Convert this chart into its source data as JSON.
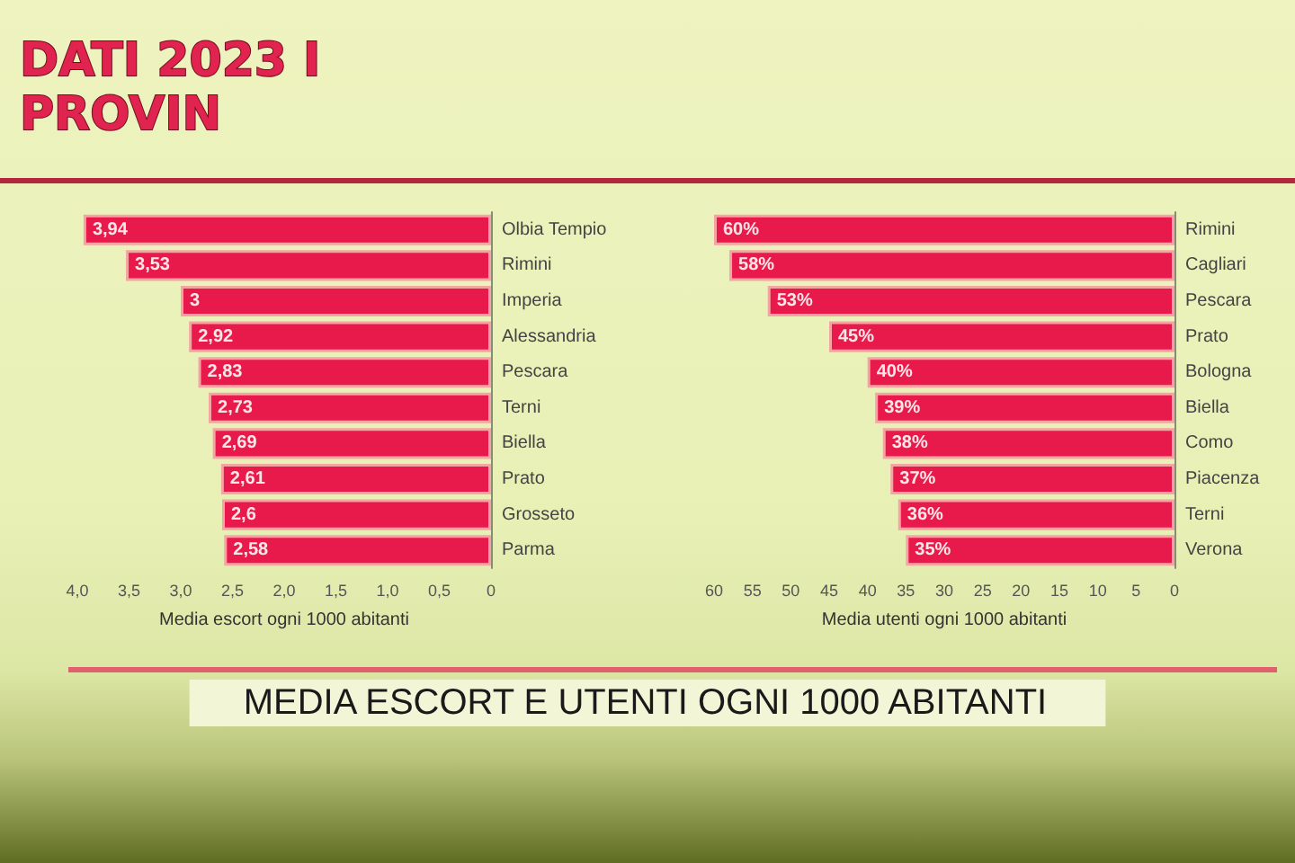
{
  "chart_data": [
    {
      "type": "bar",
      "orientation": "horizontal",
      "title": "DATI 2023 I\nPROVIN",
      "xlabel": "Media escort ogni 1000 abitanti",
      "categories": [
        "Olbia Tempio",
        "Rimini",
        "Imperia",
        "Alessandria",
        "Pescara",
        "Terni",
        "Biella",
        "Prato",
        "Grosseto",
        "Parma"
      ],
      "values": [
        3.94,
        3.53,
        3,
        2.92,
        2.83,
        2.73,
        2.69,
        2.61,
        2.6,
        2.58
      ],
      "value_labels": [
        "3,94",
        "3,53",
        "3",
        "2,92",
        "2,83",
        "2,73",
        "2,69",
        "2,61",
        "2,6",
        "2,58"
      ],
      "color": "#e8194b",
      "xlim": [
        4,
        0
      ],
      "xticks": [
        0,
        {
          "value": 0.5,
          "label": "0,5"
        },
        {
          "value": 1,
          "label": "1,0"
        },
        {
          "value": 1.5,
          "label": "1,5"
        },
        {
          "value": 2,
          "label": "2,0"
        },
        {
          "value": 2.5,
          "label": "2,5"
        },
        {
          "value": 3,
          "label": "3,0"
        },
        {
          "value": 3.5,
          "label": "3,5"
        },
        {
          "value": 4,
          "label": "4,0"
        }
      ],
      "annotations": [
        "MEDIA ESCORT E UTENTI OGNI 1000 ABITANTI"
      ]
    },
    {
      "type": "bar",
      "orientation": "horizontal",
      "xlabel": "Media utenti ogni 1000 abitanti",
      "categories": [
        "Rimini",
        "Cagliari",
        "Pescara",
        "Prato",
        "Bologna",
        "Biella",
        "Como",
        "Piacenza",
        "Terni",
        "Verona"
      ],
      "values": [
        60,
        58,
        53,
        45,
        40,
        39,
        38,
        37,
        36,
        35
      ],
      "value_labels": [
        "60%",
        "58%",
        "53%",
        "45%",
        "40%",
        "39%",
        "38%",
        "37%",
        "36%",
        "35%"
      ],
      "color": "#e8194b",
      "xlim": [
        60,
        0
      ],
      "xticks": [
        0,
        5,
        10,
        15,
        20,
        25,
        30,
        35,
        40,
        45,
        50,
        55,
        60
      ]
    }
  ]
}
